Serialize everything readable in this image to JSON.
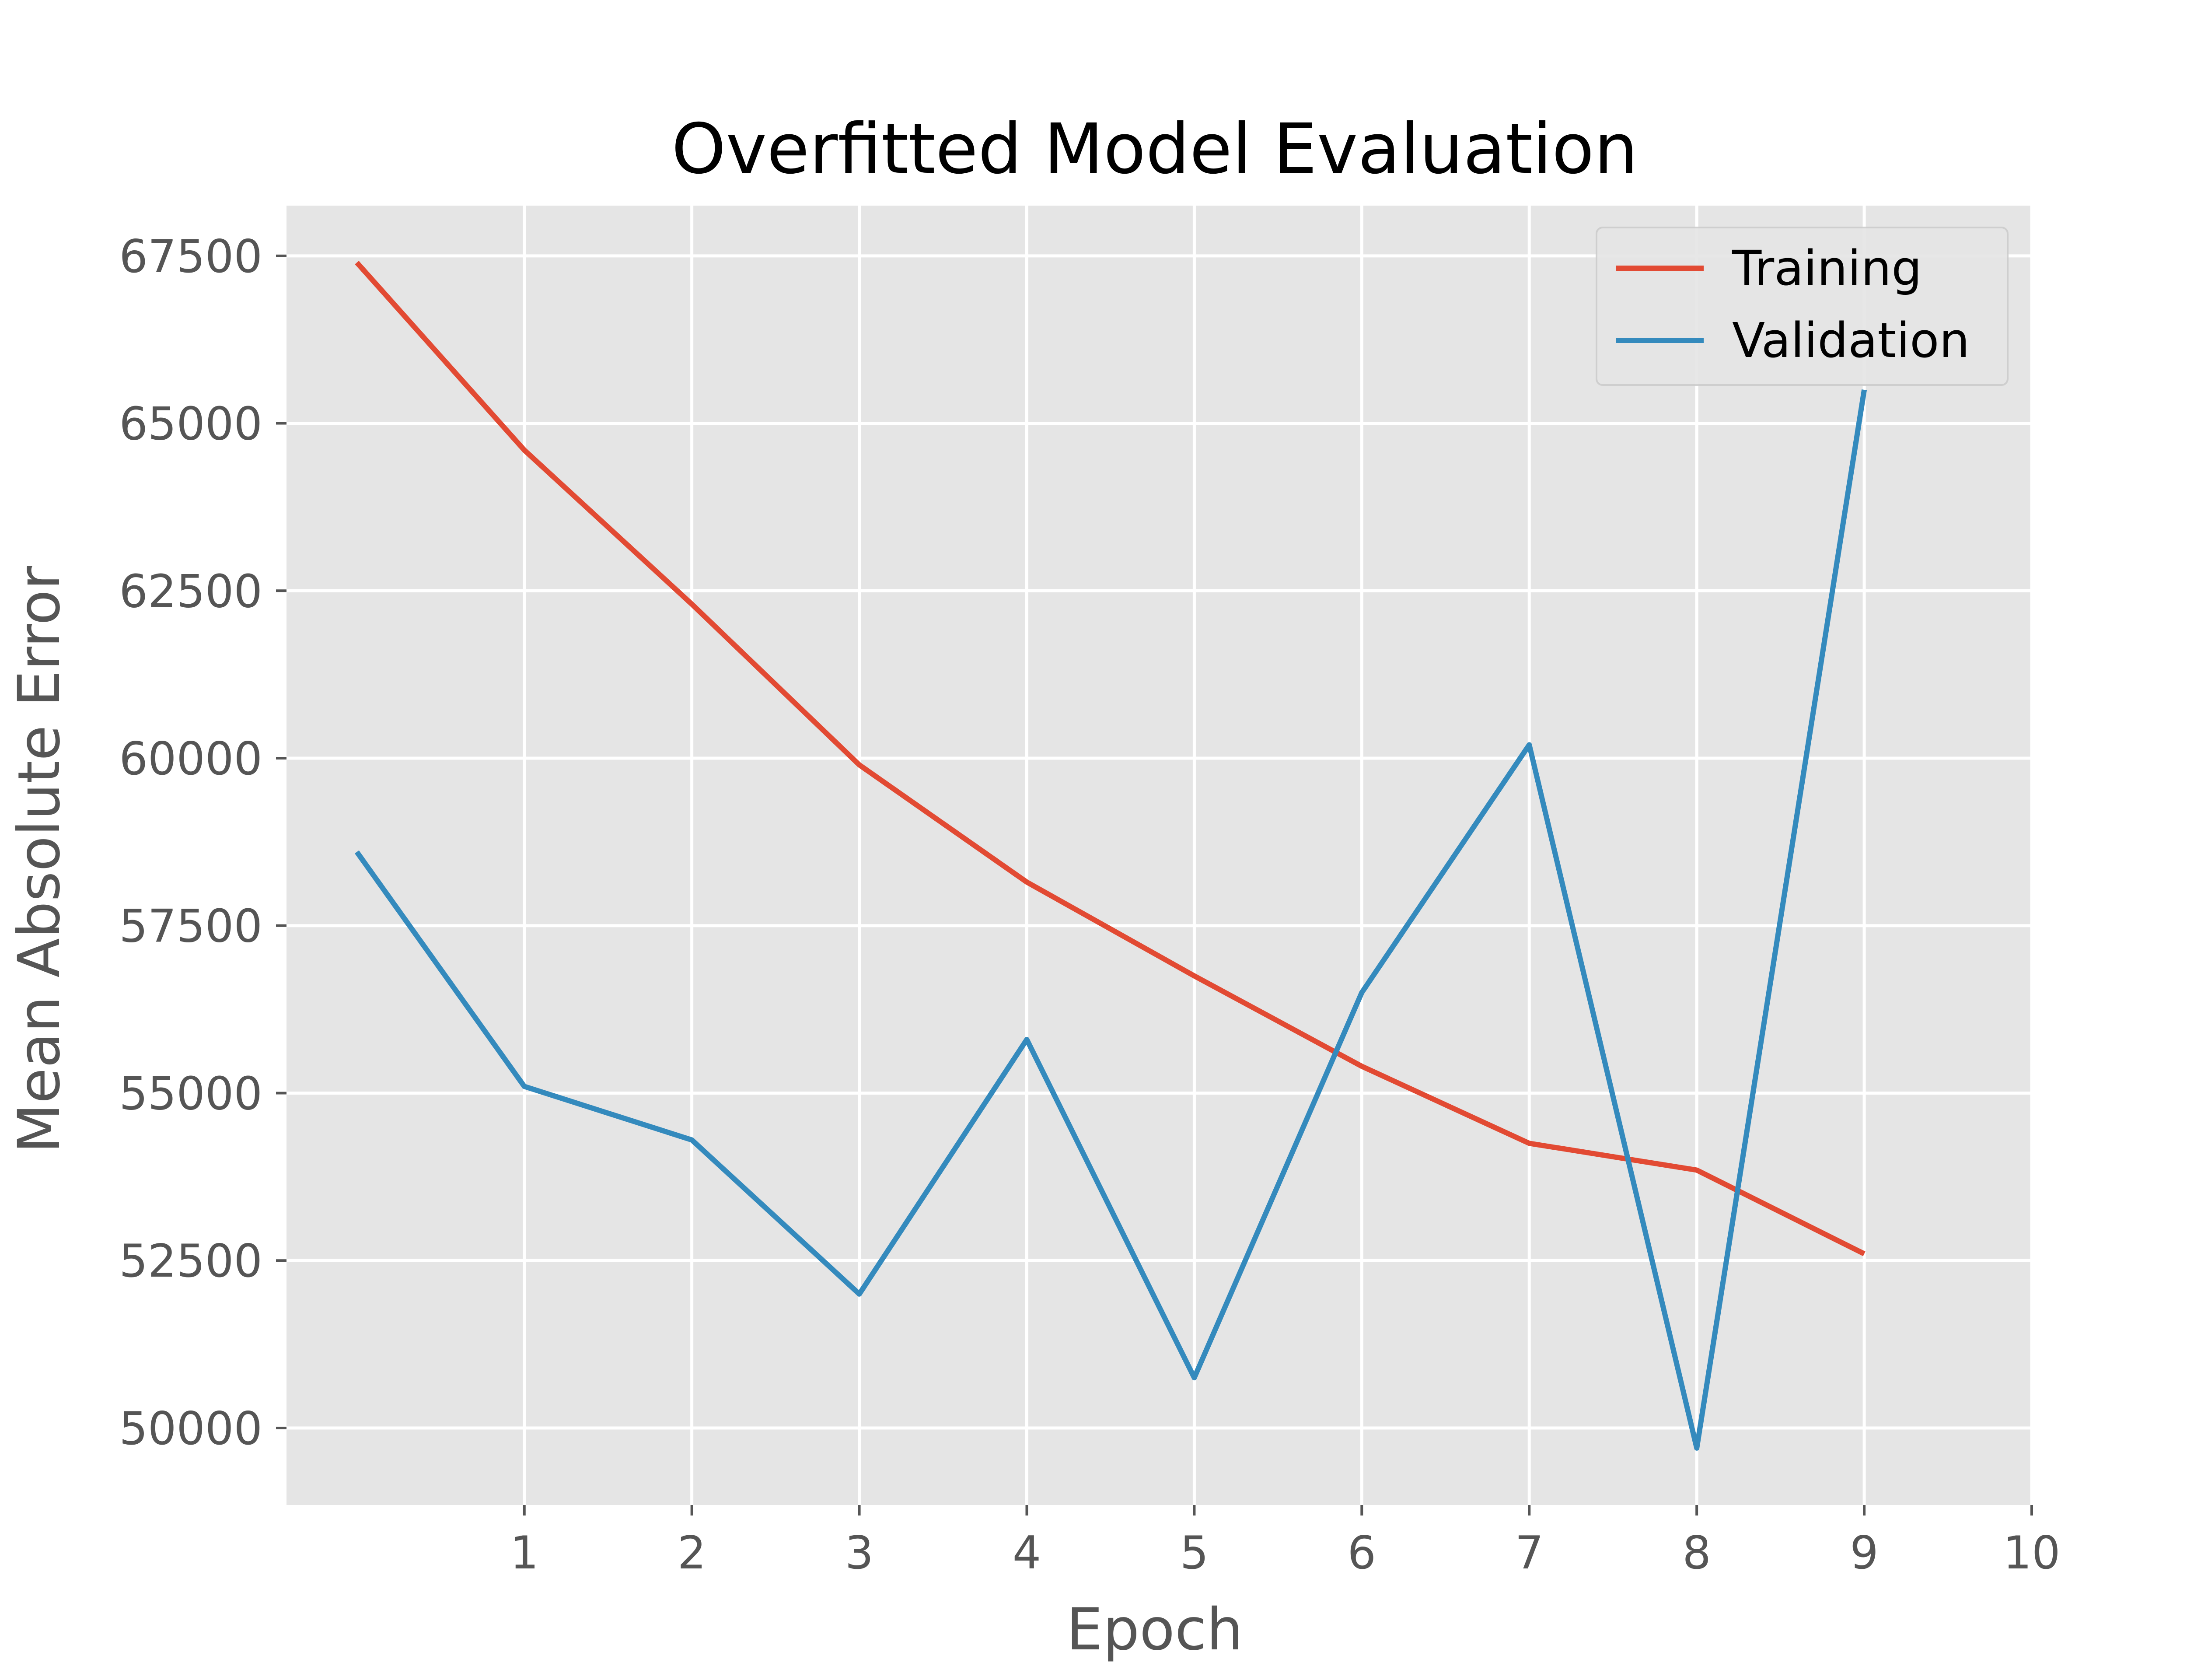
{
  "chart_data": {
    "type": "line",
    "title": "Overfitted Model Evaluation",
    "xlabel": "Epoch",
    "ylabel": "Mean Absolute Error",
    "x": [
      0,
      1,
      2,
      3,
      4,
      5,
      6,
      7,
      8,
      9
    ],
    "xticks": [
      1,
      2,
      3,
      4,
      5,
      6,
      7,
      8,
      9,
      10
    ],
    "xlim": [
      -0.42,
      10
    ],
    "yticks": [
      50000,
      52500,
      55000,
      57500,
      60000,
      62500,
      65000,
      67500
    ],
    "ylim": [
      48850,
      68250
    ],
    "grid": true,
    "legend_position": "top-right",
    "series": [
      {
        "name": "Training",
        "color": "#e24a33",
        "values": [
          67400,
          64600,
          62300,
          59900,
          58150,
          56750,
          55400,
          54250,
          53850,
          52600
        ]
      },
      {
        "name": "Validation",
        "color": "#348abd",
        "values": [
          58600,
          55100,
          54300,
          52000,
          55800,
          50750,
          56500,
          60200,
          49700,
          65500
        ]
      }
    ]
  }
}
